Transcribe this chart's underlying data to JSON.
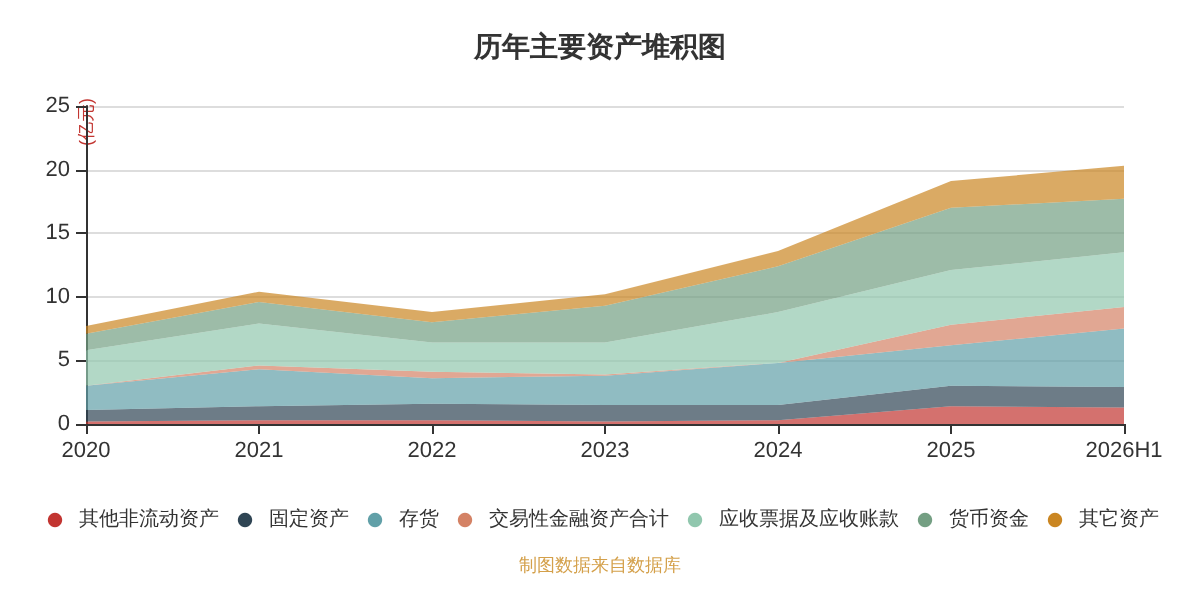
{
  "chart_data": {
    "type": "area",
    "stacked": true,
    "title": "历年主要资产堆积图",
    "ylabel": "(亿元)",
    "categories": [
      "2020",
      "2021",
      "2022",
      "2023",
      "2024",
      "2025",
      "2026H1"
    ],
    "series": [
      {
        "name": "其他非流动资产",
        "color": "#c23531",
        "values": [
          0.2,
          0.3,
          0.3,
          0.2,
          0.3,
          1.4,
          1.3
        ]
      },
      {
        "name": "固定资产",
        "color": "#2f4554",
        "values": [
          0.9,
          1.1,
          1.3,
          1.3,
          1.2,
          1.6,
          1.6
        ]
      },
      {
        "name": "存货",
        "color": "#61a0a8",
        "values": [
          1.9,
          2.9,
          2.0,
          2.3,
          3.3,
          3.2,
          4.6
        ]
      },
      {
        "name": "交易性金融资产合计",
        "color": "#d48265",
        "values": [
          0,
          0.3,
          0.5,
          0.1,
          0,
          1.6,
          1.7
        ]
      },
      {
        "name": "应收票据及应收账款",
        "color": "#91c7ae",
        "values": [
          2.8,
          3.3,
          2.3,
          2.5,
          4.0,
          4.3,
          4.3
        ]
      },
      {
        "name": "货币资金",
        "color": "#749f83",
        "values": [
          1.3,
          1.7,
          1.6,
          2.9,
          3.6,
          4.9,
          4.2
        ]
      },
      {
        "name": "其它资产",
        "color": "#ca8622",
        "values": [
          0.6,
          0.8,
          0.8,
          0.9,
          1.2,
          2.1,
          2.6
        ]
      }
    ],
    "ylim": [
      0,
      25
    ],
    "yticks": [
      0,
      5,
      10,
      15,
      20,
      25
    ],
    "grid": "y",
    "legend": "bottom",
    "marker": "none",
    "annotations": [
      "制图数据来自数据库"
    ]
  }
}
